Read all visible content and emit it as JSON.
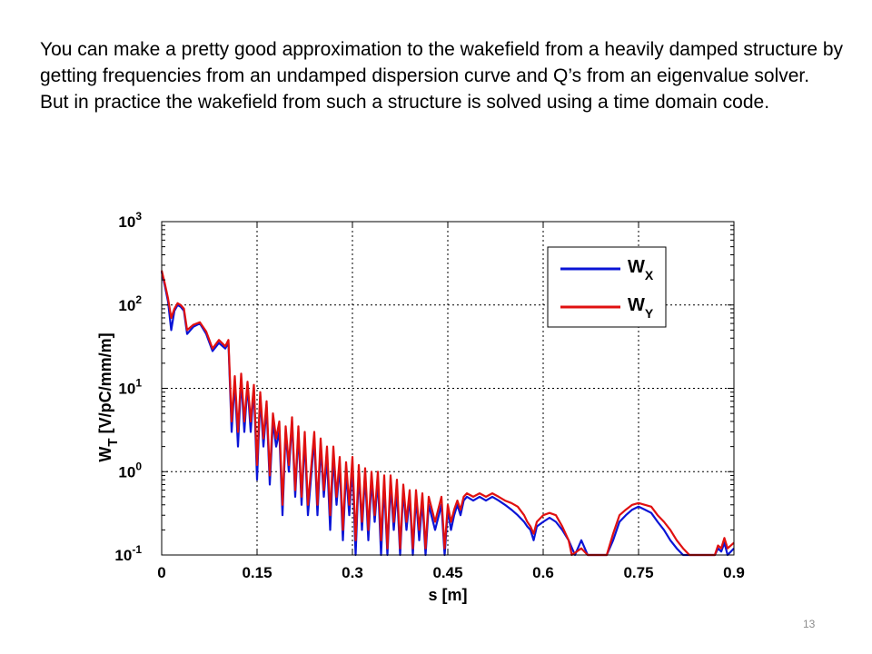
{
  "slide": {
    "paragraph1": "You can make a pretty good approximation to the wakefield from a heavily damped structure by getting frequencies from an undamped dispersion curve and Q’s from an eigenvalue solver.",
    "paragraph2": "But in practice the wakefield from such a structure is solved using a time domain code.",
    "page_number": "13"
  },
  "chart_data": {
    "type": "line",
    "xlabel": "s [m]",
    "ylabel": "W_T [V/pC/mm/m]",
    "ylabel_main": "W",
    "ylabel_sub": "T",
    "ylabel_rest": " [V/pC/mm/m]",
    "xlim": [
      0,
      0.9
    ],
    "ylim": [
      0.1,
      1000
    ],
    "yscale": "log",
    "grid": true,
    "legend_position": "top-right",
    "xticks": [
      {
        "v": 0,
        "label": "0"
      },
      {
        "v": 0.15,
        "label": "0.15"
      },
      {
        "v": 0.3,
        "label": "0.3"
      },
      {
        "v": 0.45,
        "label": "0.45"
      },
      {
        "v": 0.6,
        "label": "0.6"
      },
      {
        "v": 0.75,
        "label": "0.75"
      },
      {
        "v": 0.9,
        "label": "0.9"
      }
    ],
    "yticks": [
      {
        "v": 0.1,
        "base": "10",
        "exp": "-1"
      },
      {
        "v": 1,
        "base": "10",
        "exp": "0"
      },
      {
        "v": 10,
        "base": "10",
        "exp": "1"
      },
      {
        "v": 100,
        "base": "10",
        "exp": "2"
      },
      {
        "v": 1000,
        "base": "10",
        "exp": "3"
      }
    ],
    "series": [
      {
        "name": "W_X",
        "label_main": "W",
        "label_sub": "X",
        "color": "#0a14d6",
        "points": [
          [
            0,
            250
          ],
          [
            0.005,
            170
          ],
          [
            0.01,
            110
          ],
          [
            0.015,
            50
          ],
          [
            0.02,
            85
          ],
          [
            0.025,
            100
          ],
          [
            0.03,
            95
          ],
          [
            0.035,
            85
          ],
          [
            0.04,
            45
          ],
          [
            0.05,
            55
          ],
          [
            0.06,
            60
          ],
          [
            0.07,
            45
          ],
          [
            0.08,
            28
          ],
          [
            0.09,
            35
          ],
          [
            0.1,
            30
          ],
          [
            0.105,
            35
          ],
          [
            0.11,
            3
          ],
          [
            0.115,
            12
          ],
          [
            0.12,
            2
          ],
          [
            0.125,
            13
          ],
          [
            0.13,
            3
          ],
          [
            0.135,
            11
          ],
          [
            0.14,
            3
          ],
          [
            0.145,
            10
          ],
          [
            0.15,
            0.8
          ],
          [
            0.155,
            8
          ],
          [
            0.16,
            2
          ],
          [
            0.165,
            6
          ],
          [
            0.17,
            0.7
          ],
          [
            0.175,
            4
          ],
          [
            0.18,
            2
          ],
          [
            0.185,
            3
          ],
          [
            0.19,
            0.3
          ],
          [
            0.195,
            3
          ],
          [
            0.2,
            1
          ],
          [
            0.205,
            4
          ],
          [
            0.21,
            0.5
          ],
          [
            0.215,
            3
          ],
          [
            0.22,
            0.4
          ],
          [
            0.225,
            2.5
          ],
          [
            0.23,
            0.3
          ],
          [
            0.24,
            2.5
          ],
          [
            0.245,
            0.3
          ],
          [
            0.25,
            2
          ],
          [
            0.255,
            0.5
          ],
          [
            0.26,
            1.5
          ],
          [
            0.265,
            0.2
          ],
          [
            0.27,
            1.5
          ],
          [
            0.275,
            0.4
          ],
          [
            0.28,
            1.2
          ],
          [
            0.285,
            0.15
          ],
          [
            0.29,
            1
          ],
          [
            0.295,
            0.3
          ],
          [
            0.3,
            1.2
          ],
          [
            0.305,
            0.1
          ],
          [
            0.31,
            1
          ],
          [
            0.315,
            0.2
          ],
          [
            0.32,
            0.9
          ],
          [
            0.325,
            0.15
          ],
          [
            0.33,
            0.8
          ],
          [
            0.335,
            0.25
          ],
          [
            0.34,
            0.8
          ],
          [
            0.345,
            0.1
          ],
          [
            0.35,
            0.7
          ],
          [
            0.355,
            0.1
          ],
          [
            0.36,
            0.7
          ],
          [
            0.365,
            0.2
          ],
          [
            0.37,
            0.6
          ],
          [
            0.375,
            0.1
          ],
          [
            0.38,
            0.6
          ],
          [
            0.385,
            0.2
          ],
          [
            0.39,
            0.5
          ],
          [
            0.395,
            0.1
          ],
          [
            0.4,
            0.5
          ],
          [
            0.405,
            0.15
          ],
          [
            0.41,
            0.45
          ],
          [
            0.415,
            0.1
          ],
          [
            0.42,
            0.4
          ],
          [
            0.43,
            0.2
          ],
          [
            0.44,
            0.4
          ],
          [
            0.445,
            0.1
          ],
          [
            0.45,
            0.35
          ],
          [
            0.455,
            0.2
          ],
          [
            0.46,
            0.3
          ],
          [
            0.465,
            0.4
          ],
          [
            0.47,
            0.3
          ],
          [
            0.475,
            0.45
          ],
          [
            0.48,
            0.5
          ],
          [
            0.49,
            0.45
          ],
          [
            0.5,
            0.5
          ],
          [
            0.51,
            0.45
          ],
          [
            0.52,
            0.5
          ],
          [
            0.53,
            0.45
          ],
          [
            0.54,
            0.4
          ],
          [
            0.55,
            0.35
          ],
          [
            0.56,
            0.3
          ],
          [
            0.57,
            0.25
          ],
          [
            0.575,
            0.22
          ],
          [
            0.58,
            0.2
          ],
          [
            0.585,
            0.15
          ],
          [
            0.59,
            0.22
          ],
          [
            0.6,
            0.25
          ],
          [
            0.61,
            0.28
          ],
          [
            0.62,
            0.25
          ],
          [
            0.63,
            0.2
          ],
          [
            0.64,
            0.15
          ],
          [
            0.65,
            0.1
          ],
          [
            0.66,
            0.15
          ],
          [
            0.67,
            0.1
          ],
          [
            0.7,
            0.1
          ],
          [
            0.71,
            0.15
          ],
          [
            0.72,
            0.25
          ],
          [
            0.73,
            0.3
          ],
          [
            0.74,
            0.35
          ],
          [
            0.75,
            0.38
          ],
          [
            0.76,
            0.35
          ],
          [
            0.77,
            0.32
          ],
          [
            0.78,
            0.25
          ],
          [
            0.79,
            0.2
          ],
          [
            0.8,
            0.15
          ],
          [
            0.81,
            0.12
          ],
          [
            0.82,
            0.1
          ],
          [
            0.87,
            0.1
          ],
          [
            0.875,
            0.12
          ],
          [
            0.88,
            0.11
          ],
          [
            0.885,
            0.14
          ],
          [
            0.89,
            0.1
          ],
          [
            0.9,
            0.12
          ]
        ]
      },
      {
        "name": "W_Y",
        "label_main": "W",
        "label_sub": "Y",
        "color": "#e01010",
        "points": [
          [
            0,
            260
          ],
          [
            0.005,
            180
          ],
          [
            0.01,
            120
          ],
          [
            0.015,
            70
          ],
          [
            0.02,
            90
          ],
          [
            0.025,
            105
          ],
          [
            0.03,
            100
          ],
          [
            0.035,
            90
          ],
          [
            0.04,
            50
          ],
          [
            0.05,
            58
          ],
          [
            0.06,
            62
          ],
          [
            0.07,
            48
          ],
          [
            0.08,
            30
          ],
          [
            0.09,
            38
          ],
          [
            0.1,
            32
          ],
          [
            0.105,
            38
          ],
          [
            0.11,
            4
          ],
          [
            0.115,
            14
          ],
          [
            0.12,
            3
          ],
          [
            0.125,
            15
          ],
          [
            0.13,
            4
          ],
          [
            0.135,
            12
          ],
          [
            0.14,
            4
          ],
          [
            0.145,
            11
          ],
          [
            0.15,
            1.2
          ],
          [
            0.155,
            9
          ],
          [
            0.16,
            2.5
          ],
          [
            0.165,
            7
          ],
          [
            0.17,
            0.9
          ],
          [
            0.175,
            5
          ],
          [
            0.18,
            2.5
          ],
          [
            0.185,
            4
          ],
          [
            0.19,
            0.4
          ],
          [
            0.195,
            3.5
          ],
          [
            0.2,
            1.2
          ],
          [
            0.205,
            4.5
          ],
          [
            0.21,
            0.6
          ],
          [
            0.215,
            3.5
          ],
          [
            0.22,
            0.5
          ],
          [
            0.225,
            3
          ],
          [
            0.23,
            0.4
          ],
          [
            0.24,
            3
          ],
          [
            0.245,
            0.4
          ],
          [
            0.25,
            2.5
          ],
          [
            0.255,
            0.6
          ],
          [
            0.26,
            2
          ],
          [
            0.265,
            0.3
          ],
          [
            0.27,
            2
          ],
          [
            0.275,
            0.5
          ],
          [
            0.28,
            1.5
          ],
          [
            0.285,
            0.2
          ],
          [
            0.29,
            1.3
          ],
          [
            0.295,
            0.4
          ],
          [
            0.3,
            1.5
          ],
          [
            0.305,
            0.15
          ],
          [
            0.31,
            1.2
          ],
          [
            0.315,
            0.25
          ],
          [
            0.32,
            1.1
          ],
          [
            0.325,
            0.2
          ],
          [
            0.33,
            1
          ],
          [
            0.335,
            0.3
          ],
          [
            0.34,
            1
          ],
          [
            0.345,
            0.15
          ],
          [
            0.35,
            0.9
          ],
          [
            0.355,
            0.12
          ],
          [
            0.36,
            0.9
          ],
          [
            0.365,
            0.25
          ],
          [
            0.37,
            0.8
          ],
          [
            0.375,
            0.12
          ],
          [
            0.38,
            0.7
          ],
          [
            0.385,
            0.25
          ],
          [
            0.39,
            0.6
          ],
          [
            0.395,
            0.12
          ],
          [
            0.4,
            0.6
          ],
          [
            0.405,
            0.2
          ],
          [
            0.41,
            0.55
          ],
          [
            0.415,
            0.12
          ],
          [
            0.42,
            0.5
          ],
          [
            0.43,
            0.25
          ],
          [
            0.44,
            0.5
          ],
          [
            0.445,
            0.12
          ],
          [
            0.45,
            0.4
          ],
          [
            0.455,
            0.25
          ],
          [
            0.46,
            0.35
          ],
          [
            0.465,
            0.45
          ],
          [
            0.47,
            0.35
          ],
          [
            0.475,
            0.5
          ],
          [
            0.48,
            0.55
          ],
          [
            0.49,
            0.5
          ],
          [
            0.5,
            0.55
          ],
          [
            0.51,
            0.5
          ],
          [
            0.52,
            0.55
          ],
          [
            0.53,
            0.5
          ],
          [
            0.54,
            0.45
          ],
          [
            0.55,
            0.42
          ],
          [
            0.56,
            0.38
          ],
          [
            0.57,
            0.3
          ],
          [
            0.575,
            0.25
          ],
          [
            0.58,
            0.22
          ],
          [
            0.585,
            0.18
          ],
          [
            0.59,
            0.25
          ],
          [
            0.6,
            0.3
          ],
          [
            0.61,
            0.32
          ],
          [
            0.62,
            0.3
          ],
          [
            0.63,
            0.22
          ],
          [
            0.64,
            0.15
          ],
          [
            0.645,
            0.1
          ],
          [
            0.66,
            0.12
          ],
          [
            0.67,
            0.1
          ],
          [
            0.7,
            0.1
          ],
          [
            0.71,
            0.18
          ],
          [
            0.72,
            0.3
          ],
          [
            0.73,
            0.35
          ],
          [
            0.74,
            0.4
          ],
          [
            0.75,
            0.42
          ],
          [
            0.76,
            0.4
          ],
          [
            0.77,
            0.38
          ],
          [
            0.78,
            0.3
          ],
          [
            0.79,
            0.25
          ],
          [
            0.8,
            0.2
          ],
          [
            0.81,
            0.15
          ],
          [
            0.82,
            0.12
          ],
          [
            0.83,
            0.1
          ],
          [
            0.87,
            0.1
          ],
          [
            0.875,
            0.13
          ],
          [
            0.88,
            0.12
          ],
          [
            0.885,
            0.16
          ],
          [
            0.89,
            0.12
          ],
          [
            0.9,
            0.14
          ]
        ]
      }
    ]
  }
}
